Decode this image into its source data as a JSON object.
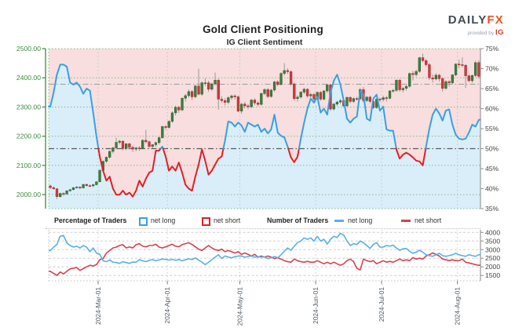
{
  "header": {
    "title": "Gold Client Positioning",
    "subtitle": "IG Client Sentiment",
    "logo": {
      "brand_daily": "DAILY",
      "brand_fx": "FX",
      "provided_by": "provided by ",
      "ig": "IG"
    }
  },
  "legend": {
    "pct_header": "Percentage of Traders",
    "pct_net_long": "net long",
    "pct_net_short": "net short",
    "count_header": "Number of Traders",
    "count_net_long": "net long",
    "count_net_short": "net short"
  },
  "colors": {
    "net_long_pct_line": "#38a0e3",
    "net_short_pct_line": "#e02026",
    "long_fill": "#daeefa",
    "short_fill": "#f8dede",
    "candle_up": "#3e7d3c",
    "candle_up_edge": "#2d5f2c",
    "candle_down": "#cc3b3b",
    "candle_down_edge": "#a82828",
    "wick": "#909090",
    "count_long_line": "#58b0e8",
    "count_short_line": "#d8414b",
    "price_axis_green": "#3c8c3c",
    "grid_green": "#86b886",
    "grid_month": "#bcc9bc",
    "midline_gray": "#5a5a5a",
    "ref_gray": "#999999",
    "axis_gray": "#999999",
    "tick_text_gray": "#444444",
    "xlabel_gray": "#525a63"
  },
  "chart_data": {
    "type": [
      "candlestick",
      "line"
    ],
    "title": "IG Client Sentiment",
    "x_axis": {
      "tick_labels": [
        "2024-Mar-01",
        "2024-Apr-01",
        "2024-May-01",
        "2024-Jun-01",
        "2024-Jul-01",
        "2024-Aug-01"
      ],
      "tick_day_index": [
        15,
        36,
        58,
        81,
        101,
        124
      ],
      "n_days": 131
    },
    "price_axis": {
      "side": "left",
      "min": 1952,
      "max": 2500,
      "tick_values": [
        2500,
        2400,
        2300,
        2200,
        2100,
        2000
      ],
      "tick_labels": [
        "2500.00",
        "2400.00",
        "2300.00",
        "2200.00",
        "2100.00",
        "2000.00"
      ]
    },
    "pct_axis": {
      "side": "right",
      "min": 35,
      "max": 75,
      "tick_values": [
        75,
        70,
        65,
        60,
        55,
        50,
        45,
        40,
        35
      ],
      "tick_labels": [
        "75%",
        "70%",
        "65%",
        "60%",
        "55%",
        "50%",
        "45%",
        "40%",
        "35%"
      ]
    },
    "count_axis": {
      "side": "right",
      "min": 1190,
      "max": 4150,
      "tick_values": [
        4000,
        3500,
        3000,
        2500,
        2000,
        1500
      ],
      "tick_labels": [
        "4000",
        "3500",
        "3000",
        "2500",
        "2000",
        "1500"
      ]
    },
    "reference_lines": {
      "pct_midline": 50,
      "price_level": 2378
    },
    "candles_ohlc": [
      [
        2030,
        2034,
        2019,
        2024
      ],
      [
        2024,
        2028,
        2017,
        2020
      ],
      [
        2020,
        2022,
        1985,
        1993
      ],
      [
        1993,
        2007,
        1990,
        2004
      ],
      [
        2004,
        2008,
        1996,
        2002
      ],
      [
        2002,
        2015,
        2000,
        2013
      ],
      [
        2013,
        2020,
        2010,
        2017
      ],
      [
        2017,
        2026,
        2014,
        2024
      ],
      [
        2024,
        2029,
        2020,
        2026
      ],
      [
        2026,
        2028,
        2018,
        2023
      ],
      [
        2023,
        2037,
        2021,
        2035
      ],
      [
        2035,
        2038,
        2027,
        2031
      ],
      [
        2031,
        2035,
        2025,
        2030
      ],
      [
        2030,
        2037,
        2026,
        2034
      ],
      [
        2034,
        2046,
        2031,
        2044
      ],
      [
        2044,
        2088,
        2042,
        2083
      ],
      [
        2083,
        2117,
        2079,
        2114
      ],
      [
        2114,
        2131,
        2108,
        2128
      ],
      [
        2128,
        2152,
        2123,
        2148
      ],
      [
        2148,
        2164,
        2141,
        2160
      ],
      [
        2160,
        2195,
        2154,
        2179
      ],
      [
        2179,
        2188,
        2172,
        2183
      ],
      [
        2183,
        2186,
        2151,
        2158
      ],
      [
        2158,
        2177,
        2152,
        2174
      ],
      [
        2174,
        2178,
        2155,
        2162
      ],
      [
        2162,
        2168,
        2146,
        2156
      ],
      [
        2156,
        2164,
        2149,
        2160
      ],
      [
        2160,
        2167,
        2150,
        2158
      ],
      [
        2158,
        2190,
        2155,
        2186
      ],
      [
        2186,
        2222,
        2175,
        2181
      ],
      [
        2181,
        2185,
        2158,
        2165
      ],
      [
        2165,
        2173,
        2159,
        2171
      ],
      [
        2171,
        2182,
        2164,
        2178
      ],
      [
        2178,
        2200,
        2172,
        2195
      ],
      [
        2195,
        2236,
        2192,
        2233
      ],
      [
        2233,
        2238,
        2222,
        2230
      ],
      [
        2230,
        2254,
        2226,
        2251
      ],
      [
        2251,
        2285,
        2245,
        2280
      ],
      [
        2280,
        2305,
        2271,
        2299
      ],
      [
        2299,
        2304,
        2280,
        2290
      ],
      [
        2290,
        2333,
        2286,
        2330
      ],
      [
        2330,
        2345,
        2319,
        2339
      ],
      [
        2339,
        2360,
        2332,
        2353
      ],
      [
        2353,
        2358,
        2324,
        2335
      ],
      [
        2335,
        2377,
        2330,
        2372
      ],
      [
        2372,
        2431,
        2340,
        2344
      ],
      [
        2344,
        2388,
        2338,
        2383
      ],
      [
        2383,
        2398,
        2372,
        2383
      ],
      [
        2383,
        2390,
        2352,
        2361
      ],
      [
        2361,
        2384,
        2355,
        2379
      ],
      [
        2379,
        2418,
        2374,
        2392
      ],
      [
        2392,
        2397,
        2291,
        2327
      ],
      [
        2327,
        2336,
        2315,
        2322
      ],
      [
        2322,
        2330,
        2305,
        2316
      ],
      [
        2316,
        2337,
        2310,
        2332
      ],
      [
        2332,
        2343,
        2324,
        2338
      ],
      [
        2338,
        2344,
        2326,
        2335
      ],
      [
        2335,
        2340,
        2282,
        2286
      ],
      [
        2286,
        2314,
        2277,
        2310
      ],
      [
        2310,
        2318,
        2295,
        2304
      ],
      [
        2304,
        2311,
        2292,
        2301
      ],
      [
        2301,
        2328,
        2296,
        2324
      ],
      [
        2324,
        2330,
        2306,
        2314
      ],
      [
        2314,
        2321,
        2303,
        2309
      ],
      [
        2309,
        2350,
        2305,
        2346
      ],
      [
        2346,
        2364,
        2341,
        2360
      ],
      [
        2360,
        2365,
        2331,
        2336
      ],
      [
        2336,
        2362,
        2332,
        2358
      ],
      [
        2358,
        2390,
        2352,
        2386
      ],
      [
        2386,
        2392,
        2371,
        2377
      ],
      [
        2377,
        2419,
        2374,
        2415
      ],
      [
        2415,
        2450,
        2408,
        2425
      ],
      [
        2425,
        2433,
        2413,
        2421
      ],
      [
        2421,
        2426,
        2372,
        2379
      ],
      [
        2379,
        2384,
        2322,
        2329
      ],
      [
        2329,
        2340,
        2319,
        2334
      ],
      [
        2334,
        2355,
        2329,
        2351
      ],
      [
        2351,
        2366,
        2344,
        2361
      ],
      [
        2361,
        2364,
        2332,
        2338
      ],
      [
        2338,
        2348,
        2331,
        2343
      ],
      [
        2343,
        2349,
        2321,
        2327
      ],
      [
        2327,
        2354,
        2322,
        2350
      ],
      [
        2350,
        2355,
        2321,
        2327
      ],
      [
        2327,
        2358,
        2323,
        2355
      ],
      [
        2355,
        2380,
        2349,
        2376
      ],
      [
        2376,
        2379,
        2287,
        2293
      ],
      [
        2293,
        2314,
        2288,
        2310
      ],
      [
        2310,
        2322,
        2303,
        2317
      ],
      [
        2317,
        2328,
        2310,
        2322
      ],
      [
        2322,
        2326,
        2298,
        2304
      ],
      [
        2304,
        2336,
        2301,
        2333
      ],
      [
        2333,
        2337,
        2313,
        2319
      ],
      [
        2319,
        2333,
        2314,
        2329
      ],
      [
        2329,
        2335,
        2322,
        2328
      ],
      [
        2328,
        2365,
        2324,
        2360
      ],
      [
        2360,
        2368,
        2316,
        2322
      ],
      [
        2322,
        2337,
        2317,
        2334
      ],
      [
        2334,
        2339,
        2313,
        2319
      ],
      [
        2319,
        2324,
        2293,
        2298
      ],
      [
        2298,
        2331,
        2294,
        2327
      ],
      [
        2327,
        2332,
        2318,
        2326
      ],
      [
        2326,
        2339,
        2319,
        2332
      ],
      [
        2332,
        2338,
        2319,
        2330
      ],
      [
        2330,
        2358,
        2326,
        2355
      ],
      [
        2355,
        2362,
        2349,
        2357
      ],
      [
        2357,
        2395,
        2352,
        2392
      ],
      [
        2392,
        2397,
        2353,
        2359
      ],
      [
        2359,
        2369,
        2350,
        2364
      ],
      [
        2364,
        2375,
        2356,
        2371
      ],
      [
        2371,
        2418,
        2366,
        2415
      ],
      [
        2415,
        2424,
        2391,
        2411
      ],
      [
        2411,
        2428,
        2404,
        2422
      ],
      [
        2422,
        2472,
        2417,
        2469
      ],
      [
        2469,
        2483,
        2453,
        2459
      ],
      [
        2459,
        2465,
        2438,
        2445
      ],
      [
        2445,
        2451,
        2393,
        2400
      ],
      [
        2400,
        2412,
        2384,
        2396
      ],
      [
        2396,
        2416,
        2391,
        2409
      ],
      [
        2409,
        2414,
        2388,
        2397
      ],
      [
        2397,
        2402,
        2353,
        2364
      ],
      [
        2364,
        2392,
        2359,
        2387
      ],
      [
        2387,
        2392,
        2370,
        2383
      ],
      [
        2383,
        2413,
        2378,
        2410
      ],
      [
        2410,
        2450,
        2405,
        2447
      ],
      [
        2447,
        2462,
        2433,
        2445
      ],
      [
        2445,
        2470,
        2436,
        2443
      ],
      [
        2443,
        2447,
        2365,
        2407
      ],
      [
        2407,
        2412,
        2385,
        2390
      ],
      [
        2390,
        2411,
        2383,
        2408
      ],
      [
        2408,
        2458,
        2403,
        2452
      ],
      [
        2452,
        2460,
        2398,
        2405
      ]
    ],
    "pct_net_long": [
      60.5,
      64,
      68.5,
      71,
      71,
      70.5,
      66.5,
      66,
      66.5,
      65.5,
      63.7,
      65,
      64.5,
      59,
      53,
      48,
      44.5,
      42,
      43,
      40,
      38.5,
      38.5,
      39.5,
      38.5,
      39,
      38,
      39.5,
      42,
      40.5,
      42.5,
      44,
      44.5,
      49.5,
      49.5,
      50.5,
      48,
      44.5,
      45.5,
      44.5,
      46.5,
      44,
      41,
      40,
      39.5,
      43,
      46,
      49.8,
      47,
      43.5,
      44.5,
      46,
      47.5,
      48,
      52,
      56.8,
      56.5,
      55.5,
      56.5,
      55.8,
      54.2,
      56.5,
      56,
      55.5,
      56,
      54.2,
      55,
      53.8,
      54.8,
      58.5,
      54,
      53.2,
      52.8,
      50.5,
      47.8,
      46.6,
      48,
      52.5,
      56.5,
      60,
      62.5,
      61.5,
      63,
      59,
      60,
      58.5,
      64,
      67,
      68.5,
      66,
      62,
      57.5,
      56.5,
      57.5,
      58,
      64.5,
      63.5,
      57.5,
      57,
      62.5,
      63.5,
      59.5,
      60.5,
      54.8,
      54.5,
      54.5,
      49.8,
      47.5,
      48.5,
      49,
      48.5,
      47.8,
      47,
      46.8,
      45.8,
      50.5,
      55,
      58.5,
      60,
      58.8,
      57,
      59.5,
      59.8,
      56,
      53.5,
      52.5,
      52.3,
      52.5,
      54,
      56,
      55.5,
      57.2
    ],
    "count_net_long": [
      2950,
      3150,
      3300,
      3780,
      3820,
      3400,
      3240,
      3150,
      3200,
      3100,
      3240,
      3150,
      2880,
      3100,
      2800,
      2730,
      2350,
      2300,
      2400,
      2270,
      2250,
      2200,
      2300,
      2250,
      2200,
      2280,
      2270,
      2420,
      2350,
      2300,
      2380,
      2420,
      2350,
      2400,
      2450,
      2430,
      2390,
      2440,
      2380,
      2430,
      2350,
      2410,
      2470,
      2420,
      2520,
      2390,
      2280,
      2130,
      2260,
      2420,
      2560,
      2700,
      2490,
      2630,
      2570,
      2520,
      2590,
      2630,
      2630,
      2560,
      2600,
      2630,
      2560,
      2600,
      2560,
      2590,
      2480,
      2530,
      2600,
      2530,
      2700,
      2900,
      3100,
      2960,
      3200,
      3410,
      3500,
      3680,
      3600,
      3680,
      3500,
      3770,
      3500,
      3600,
      3320,
      3600,
      3770,
      3700,
      3950,
      3850,
      3500,
      3240,
      3350,
      3300,
      3500,
      3400,
      3240,
      3070,
      3300,
      3410,
      3150,
      3150,
      3240,
      3200,
      3260,
      3100,
      2960,
      3050,
      3070,
      2900,
      2790,
      2850,
      2960,
      2850,
      2700,
      2650,
      2610,
      2700,
      2790,
      2650,
      2610,
      2650,
      2700,
      2790,
      2700,
      2650,
      2610,
      2700,
      2650,
      2610,
      2700
    ],
    "count_net_short": [
      1740,
      1620,
      1510,
      1700,
      1590,
      1740,
      1880,
      1920,
      1960,
      1790,
      1900,
      2000,
      2090,
      2050,
      2130,
      2420,
      2480,
      2800,
      2950,
      3100,
      3150,
      3240,
      3290,
      3100,
      3160,
      3100,
      3290,
      3350,
      3200,
      3160,
      3240,
      3240,
      3310,
      3150,
      3100,
      3160,
      3240,
      3310,
      3200,
      3160,
      3290,
      3350,
      3400,
      3300,
      3160,
      3030,
      2950,
      3100,
      3240,
      3100,
      3000,
      2950,
      3030,
      2880,
      2950,
      2880,
      2800,
      2880,
      2730,
      2800,
      2730,
      2630,
      2730,
      2560,
      2630,
      2560,
      2630,
      2560,
      2480,
      2530,
      2450,
      2360,
      2300,
      2270,
      2450,
      2360,
      2300,
      2270,
      2320,
      2270,
      2270,
      2360,
      2270,
      2180,
      2270,
      2180,
      2270,
      2180,
      2090,
      2180,
      2360,
      2450,
      2300,
      1910,
      1820,
      2450,
      2360,
      2300,
      2360,
      2180,
      2270,
      2360,
      2270,
      2320,
      2270,
      2360,
      2450,
      2360,
      2410,
      2360,
      2540,
      2450,
      2500,
      2450,
      2630,
      2700,
      2810,
      2720,
      2630,
      2450,
      2410,
      2360,
      2410,
      2360,
      2360,
      2450,
      2270,
      2230,
      2180,
      2130,
      2090
    ]
  }
}
